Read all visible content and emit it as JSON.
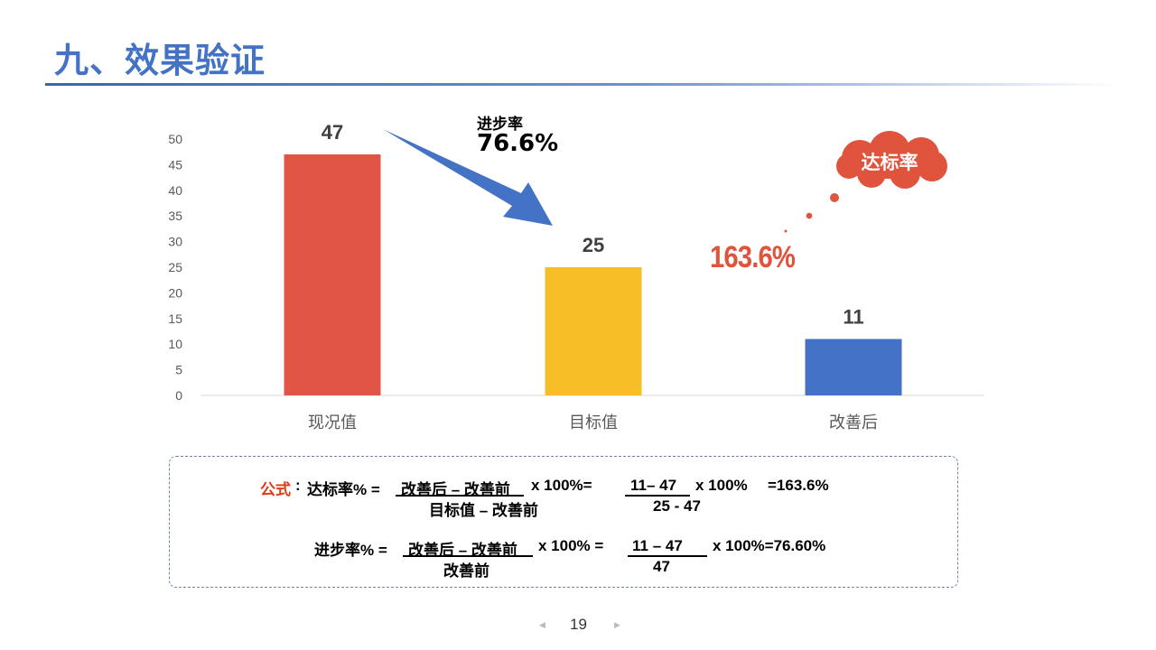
{
  "title": "九、效果验证",
  "chart_data": {
    "type": "bar",
    "categories": [
      "现况值",
      "目标值",
      "改善后"
    ],
    "values": [
      47,
      25,
      11
    ],
    "colors": [
      "#E05543",
      "#F6BE27",
      "#4472C4"
    ],
    "ylim": [
      0,
      50
    ],
    "yticks": [
      0,
      5,
      10,
      15,
      20,
      25,
      30,
      35,
      40,
      45,
      50
    ],
    "data_labels": [
      "47",
      "25",
      "11"
    ],
    "grid": false,
    "legend": "none",
    "title": "",
    "xlabel": "",
    "ylabel": ""
  },
  "annotations": {
    "progress_label": "进步率",
    "progress_value": "76.6%",
    "reach_label": "达标率",
    "reach_value": "163.6%"
  },
  "formula": {
    "prefix": "公式",
    "colon": ":",
    "reach_name": "达标率% =",
    "reach_numerator": "改善后 – 改善前",
    "reach_mult": "x 100%=",
    "reach_denominator": "目标值 – 改善前",
    "reach_num_vals": "11– 47",
    "reach_den_vals": "25 - 47",
    "reach_mult2": "x 100%",
    "reach_result": "=163.6%",
    "progress_name": "进步率% =",
    "progress_numerator": "改善后 – 改善前",
    "progress_mult": "x 100% =",
    "progress_denominator": "改善前",
    "progress_num_vals": "11 – 47",
    "progress_den_vals": "47",
    "progress_result": "x 100%=76.60%"
  },
  "page_number": "19",
  "colors": {
    "accent": "#4472C4",
    "red": "#E0533C"
  }
}
